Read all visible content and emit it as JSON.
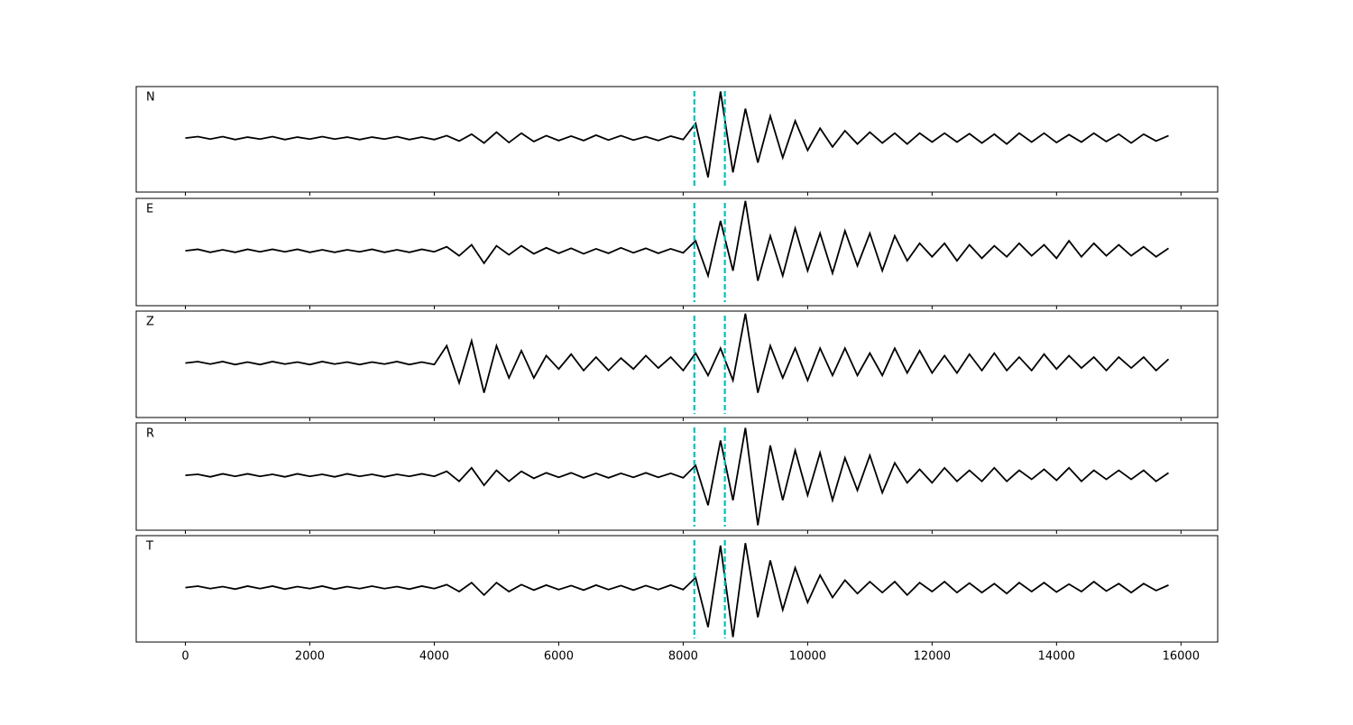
{
  "chart_data": {
    "type": "line",
    "x": [
      0,
      200,
      400,
      600,
      800,
      1000,
      1200,
      1400,
      1600,
      1800,
      2000,
      2200,
      2400,
      2600,
      2800,
      3000,
      3200,
      3400,
      3600,
      3800,
      4000,
      4200,
      4400,
      4600,
      4800,
      5000,
      5200,
      5400,
      5600,
      5800,
      6000,
      6200,
      6400,
      6600,
      6800,
      7000,
      7200,
      7400,
      7600,
      7800,
      8000,
      8200,
      8400,
      8600,
      8800,
      9000,
      9200,
      9400,
      9600,
      9800,
      10000,
      10200,
      10400,
      10600,
      10800,
      11000,
      11200,
      11400,
      11600,
      11800,
      12000,
      12200,
      12400,
      12600,
      12800,
      13000,
      13200,
      13400,
      13600,
      13800,
      14000,
      14200,
      14400,
      14600,
      14800,
      15000,
      15200,
      15400,
      15600,
      15800
    ],
    "series": [
      {
        "name": "N",
        "color": "#000000",
        "values": [
          0,
          0.03,
          -0.02,
          0.03,
          -0.03,
          0.02,
          -0.02,
          0.03,
          -0.03,
          0.02,
          -0.02,
          0.03,
          -0.02,
          0.02,
          -0.03,
          0.02,
          -0.02,
          0.03,
          -0.03,
          0.02,
          -0.03,
          0.05,
          -0.06,
          0.08,
          -0.1,
          0.12,
          -0.09,
          0.1,
          -0.07,
          0.05,
          -0.05,
          0.04,
          -0.05,
          0.06,
          -0.04,
          0.05,
          -0.04,
          0.03,
          -0.05,
          0.04,
          -0.03,
          0.3,
          -0.8,
          0.95,
          -0.7,
          0.6,
          -0.5,
          0.45,
          -0.4,
          0.35,
          -0.25,
          0.2,
          -0.18,
          0.15,
          -0.12,
          0.12,
          -0.1,
          0.1,
          -0.12,
          0.1,
          -0.08,
          0.1,
          -0.08,
          0.09,
          -0.1,
          0.08,
          -0.12,
          0.1,
          -0.08,
          0.1,
          -0.09,
          0.07,
          -0.08,
          0.1,
          -0.07,
          0.08,
          -0.1,
          0.08,
          -0.06,
          0.05
        ]
      },
      {
        "name": "E",
        "color": "#000000",
        "values": [
          0,
          0.03,
          -0.03,
          0.02,
          -0.03,
          0.03,
          -0.02,
          0.03,
          -0.02,
          0.03,
          -0.03,
          0.02,
          -0.03,
          0.02,
          -0.02,
          0.03,
          -0.03,
          0.02,
          -0.03,
          0.03,
          -0.02,
          0.08,
          -0.1,
          0.12,
          -0.25,
          0.1,
          -0.08,
          0.1,
          -0.06,
          0.06,
          -0.05,
          0.05,
          -0.06,
          0.04,
          -0.05,
          0.06,
          -0.04,
          0.05,
          -0.05,
          0.04,
          -0.04,
          0.2,
          -0.5,
          0.6,
          -0.4,
          1.0,
          -0.6,
          0.3,
          -0.5,
          0.45,
          -0.4,
          0.35,
          -0.45,
          0.4,
          -0.3,
          0.35,
          -0.4,
          0.3,
          -0.2,
          0.15,
          -0.12,
          0.15,
          -0.2,
          0.12,
          -0.15,
          0.1,
          -0.12,
          0.15,
          -0.1,
          0.12,
          -0.15,
          0.2,
          -0.12,
          0.15,
          -0.1,
          0.12,
          -0.1,
          0.08,
          -0.12,
          0.05
        ]
      },
      {
        "name": "Z",
        "color": "#000000",
        "values": [
          0,
          0.03,
          -0.02,
          0.03,
          -0.03,
          0.02,
          -0.03,
          0.03,
          -0.02,
          0.02,
          -0.03,
          0.03,
          -0.02,
          0.02,
          -0.03,
          0.02,
          -0.02,
          0.03,
          -0.03,
          0.02,
          -0.03,
          0.35,
          -0.4,
          0.45,
          -0.6,
          0.35,
          -0.3,
          0.25,
          -0.3,
          0.15,
          -0.12,
          0.18,
          -0.15,
          0.12,
          -0.15,
          0.1,
          -0.12,
          0.15,
          -0.1,
          0.12,
          -0.15,
          0.2,
          -0.25,
          0.3,
          -0.35,
          1.0,
          -0.6,
          0.35,
          -0.3,
          0.3,
          -0.35,
          0.3,
          -0.25,
          0.3,
          -0.25,
          0.2,
          -0.25,
          0.3,
          -0.2,
          0.25,
          -0.2,
          0.15,
          -0.2,
          0.18,
          -0.15,
          0.2,
          -0.15,
          0.12,
          -0.15,
          0.18,
          -0.12,
          0.15,
          -0.1,
          0.12,
          -0.15,
          0.12,
          -0.1,
          0.12,
          -0.15,
          0.08
        ]
      },
      {
        "name": "R",
        "color": "#000000",
        "values": [
          0,
          0.02,
          -0.03,
          0.03,
          -0.02,
          0.03,
          -0.02,
          0.02,
          -0.03,
          0.03,
          -0.02,
          0.02,
          -0.03,
          0.03,
          -0.02,
          0.02,
          -0.03,
          0.02,
          -0.02,
          0.03,
          -0.02,
          0.08,
          -0.12,
          0.15,
          -0.2,
          0.1,
          -0.12,
          0.08,
          -0.06,
          0.05,
          -0.04,
          0.05,
          -0.05,
          0.04,
          -0.05,
          0.04,
          -0.04,
          0.05,
          -0.04,
          0.04,
          -0.05,
          0.2,
          -0.6,
          0.7,
          -0.5,
          0.95,
          -1.0,
          0.6,
          -0.5,
          0.5,
          -0.4,
          0.45,
          -0.5,
          0.35,
          -0.3,
          0.4,
          -0.35,
          0.25,
          -0.15,
          0.12,
          -0.15,
          0.15,
          -0.12,
          0.1,
          -0.12,
          0.15,
          -0.12,
          0.1,
          -0.08,
          0.12,
          -0.1,
          0.15,
          -0.12,
          0.1,
          -0.08,
          0.1,
          -0.08,
          0.1,
          -0.12,
          0.05
        ]
      },
      {
        "name": "T",
        "color": "#000000",
        "values": [
          0,
          0.03,
          -0.02,
          0.02,
          -0.03,
          0.03,
          -0.02,
          0.03,
          -0.03,
          0.02,
          -0.02,
          0.03,
          -0.03,
          0.02,
          -0.02,
          0.03,
          -0.02,
          0.02,
          -0.03,
          0.03,
          -0.02,
          0.06,
          -0.08,
          0.1,
          -0.15,
          0.1,
          -0.08,
          0.06,
          -0.05,
          0.05,
          -0.04,
          0.04,
          -0.05,
          0.05,
          -0.04,
          0.04,
          -0.05,
          0.04,
          -0.04,
          0.05,
          -0.04,
          0.2,
          -0.8,
          0.85,
          -1.0,
          0.9,
          -0.6,
          0.55,
          -0.45,
          0.4,
          -0.3,
          0.25,
          -0.2,
          0.15,
          -0.12,
          0.12,
          -0.1,
          0.12,
          -0.15,
          0.1,
          -0.08,
          0.12,
          -0.1,
          0.09,
          -0.1,
          0.08,
          -0.12,
          0.1,
          -0.08,
          0.1,
          -0.09,
          0.07,
          -0.08,
          0.12,
          -0.07,
          0.08,
          -0.1,
          0.08,
          -0.06,
          0.05
        ]
      }
    ],
    "vlines": [
      8180,
      8670
    ],
    "vline_color": "#00bfbf",
    "xlim": [
      -790,
      16590
    ],
    "xticks": [
      0,
      2000,
      4000,
      6000,
      8000,
      10000,
      12000,
      14000,
      16000
    ],
    "ylim": [
      -1.1,
      1.05
    ]
  }
}
